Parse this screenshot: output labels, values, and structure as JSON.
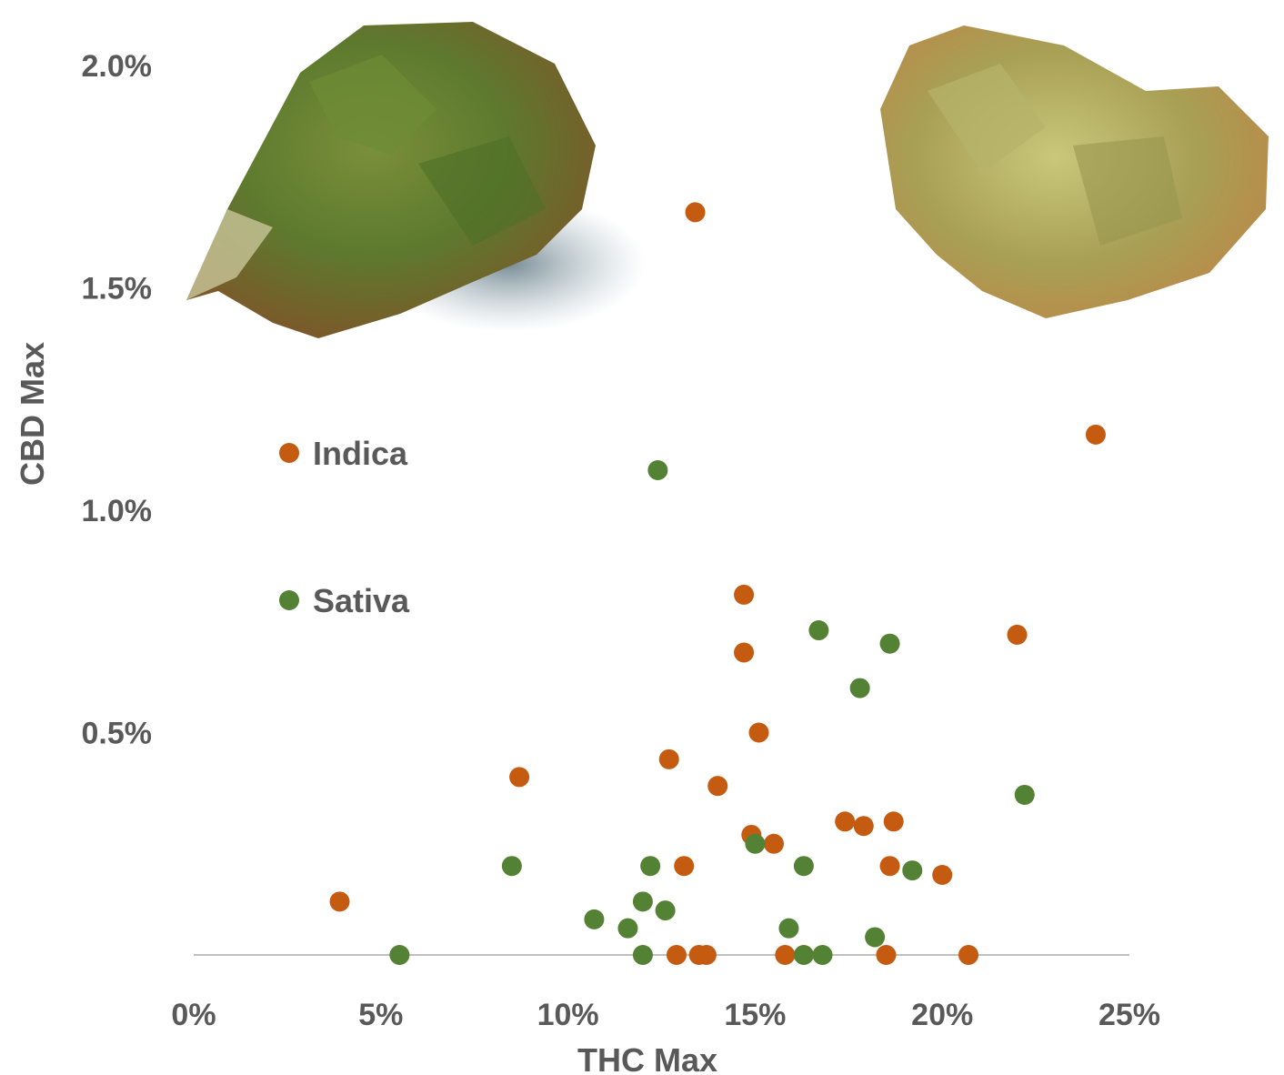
{
  "chart_data": {
    "type": "scatter",
    "xlabel": "THC Max",
    "ylabel": "CBD Max",
    "xlim": [
      0,
      25
    ],
    "ylim": [
      0,
      2.0
    ],
    "x_ticks": [
      "0%",
      "5%",
      "10%",
      "15%",
      "20%",
      "25%"
    ],
    "y_ticks": [
      "0.5%",
      "1.0%",
      "1.5%",
      "2.0%"
    ],
    "grid": false,
    "legend": "left",
    "series": [
      {
        "name": "Indica",
        "color": "#C55A11",
        "points": [
          [
            13.4,
            1.67
          ],
          [
            24.1,
            1.17
          ],
          [
            22.0,
            0.72
          ],
          [
            14.7,
            0.81
          ],
          [
            14.7,
            0.68
          ],
          [
            15.1,
            0.5
          ],
          [
            12.7,
            0.44
          ],
          [
            8.7,
            0.4
          ],
          [
            14.0,
            0.38
          ],
          [
            17.4,
            0.3
          ],
          [
            18.7,
            0.3
          ],
          [
            17.9,
            0.29
          ],
          [
            14.9,
            0.27
          ],
          [
            15.5,
            0.25
          ],
          [
            13.1,
            0.2
          ],
          [
            18.6,
            0.2
          ],
          [
            20.0,
            0.18
          ],
          [
            3.9,
            0.12
          ],
          [
            12.9,
            0.0
          ],
          [
            13.5,
            0.0
          ],
          [
            13.7,
            0.0
          ],
          [
            15.8,
            0.0
          ],
          [
            18.5,
            0.0
          ],
          [
            20.7,
            0.0
          ]
        ]
      },
      {
        "name": "Sativa",
        "color": "#548235",
        "points": [
          [
            12.4,
            1.09
          ],
          [
            16.7,
            0.73
          ],
          [
            18.6,
            0.7
          ],
          [
            17.8,
            0.6
          ],
          [
            22.2,
            0.36
          ],
          [
            15.0,
            0.25
          ],
          [
            8.5,
            0.2
          ],
          [
            12.2,
            0.2
          ],
          [
            16.3,
            0.2
          ],
          [
            19.2,
            0.19
          ],
          [
            12.0,
            0.12
          ],
          [
            12.6,
            0.1
          ],
          [
            10.7,
            0.08
          ],
          [
            11.6,
            0.06
          ],
          [
            15.9,
            0.06
          ],
          [
            18.2,
            0.04
          ],
          [
            5.5,
            0.0
          ],
          [
            12.0,
            0.0
          ],
          [
            16.3,
            0.0
          ],
          [
            16.8,
            0.0
          ]
        ]
      }
    ]
  }
}
